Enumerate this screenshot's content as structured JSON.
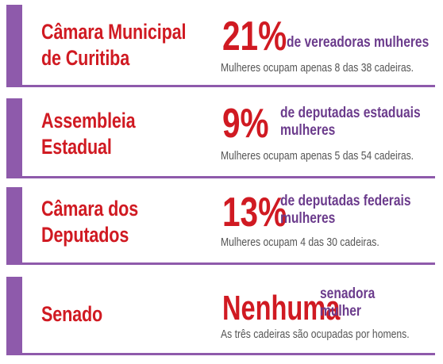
{
  "cards": [
    {
      "name_lines": [
        "Câmara Municipal",
        "de Curitiba"
      ],
      "stat": "21%",
      "desc_lines": [
        "de vereadoras mulheres"
      ],
      "note": "Mulheres ocupam apenas 8 das 38 cadeiras."
    },
    {
      "name_lines": [
        "Assembleia",
        "Estadual"
      ],
      "stat": "9%",
      "desc_lines": [
        "de deputadas estaduais",
        "mulheres"
      ],
      "note": "Mulheres ocupam apenas 5 das 54 cadeiras."
    },
    {
      "name_lines": [
        "Câmara dos",
        "Deputados"
      ],
      "stat": "13%",
      "desc_lines": [
        "de deputadas federais",
        "mulheres"
      ],
      "note": "Mulheres ocupam 4 das 30 cadeiras."
    },
    {
      "name_lines": [
        "Senado"
      ],
      "stat": "Nenhuma",
      "desc_lines": [
        "senadora",
        "mulher"
      ],
      "note": "As três cadeiras são ocupadas por homens."
    }
  ],
  "colors": {
    "accent_red": "#d01a22",
    "accent_purple": "#8e5aab",
    "desc_purple": "#6b3b8c",
    "note_gray": "#555555"
  }
}
